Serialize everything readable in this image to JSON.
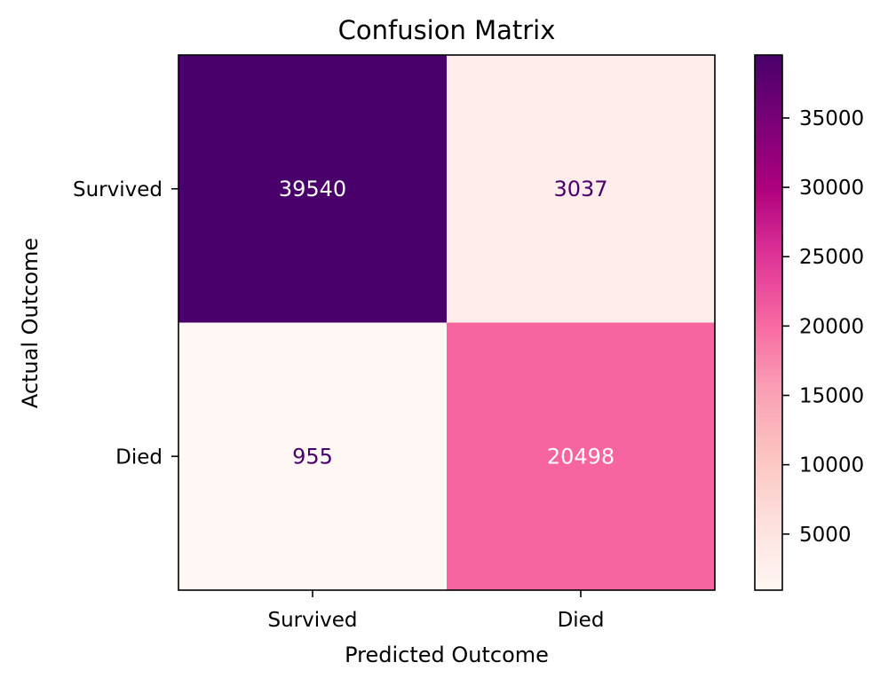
{
  "chart_data": {
    "type": "heatmap",
    "title": "Confusion Matrix",
    "xlabel": "Predicted Outcome",
    "ylabel": "Actual Outcome",
    "x_categories": [
      "Survived",
      "Died"
    ],
    "y_categories": [
      "Survived",
      "Died"
    ],
    "values": [
      [
        39540,
        3037
      ],
      [
        955,
        20498
      ]
    ],
    "colormap": "RdPu",
    "color_range": [
      955,
      39540
    ],
    "colorbar": {
      "ticks": [
        5000,
        10000,
        15000,
        20000,
        25000,
        30000,
        35000
      ],
      "tick_labels": [
        "5000",
        "10000",
        "15000",
        "20000",
        "25000",
        "30000",
        "35000"
      ],
      "placement": "right"
    },
    "grid": false
  }
}
